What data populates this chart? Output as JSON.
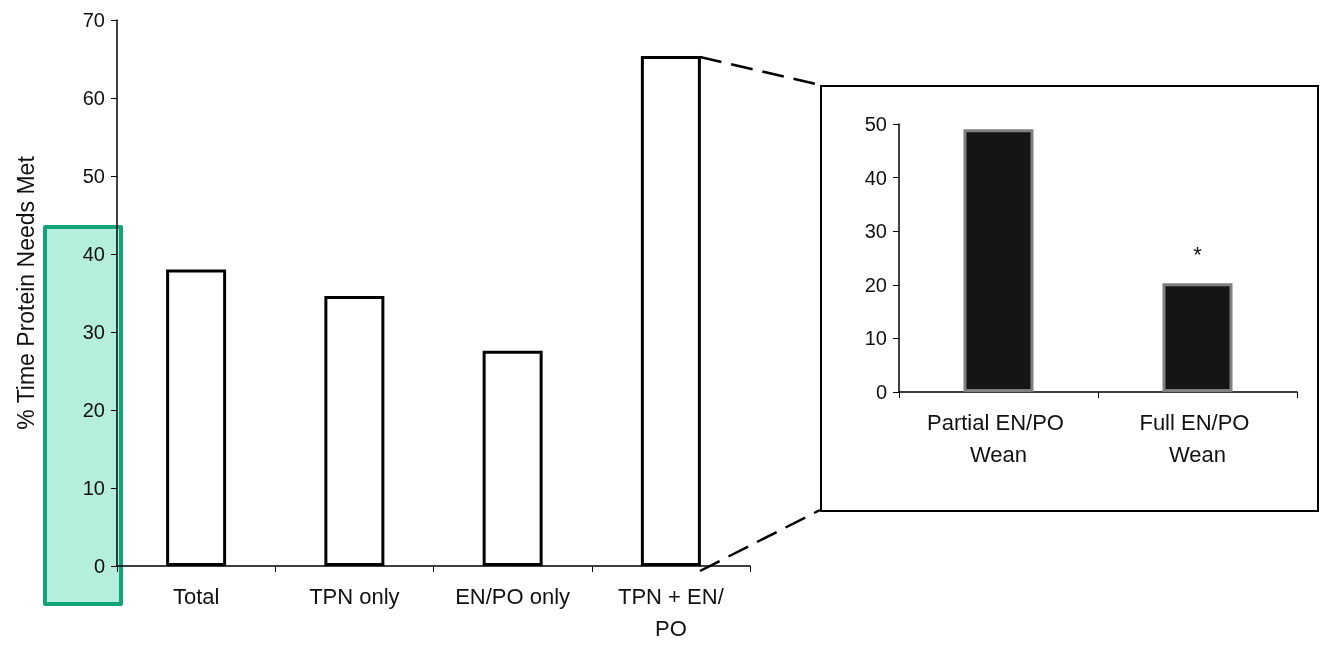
{
  "chart_data": [
    {
      "type": "bar",
      "ylabel": "% Time Protein Needs Met",
      "categories": [
        "Total",
        "TPN only",
        "EN/PO only",
        "TPN + EN/PO"
      ],
      "values": [
        38,
        34.6,
        27.6,
        65.4
      ],
      "color": "#ffffff",
      "ylim": [
        0,
        70
      ],
      "yticks": [
        0,
        10,
        20,
        30,
        40,
        50,
        60,
        70
      ],
      "grid": false
    },
    {
      "type": "bar",
      "categories": [
        "Partial EN/PO Wean",
        "Full EN/PO Wean"
      ],
      "values": [
        49,
        20.3
      ],
      "color": "#151515",
      "ylim": [
        0,
        50
      ],
      "yticks": [
        0,
        10,
        20,
        30,
        40,
        50
      ],
      "grid": false,
      "annotations": [
        {
          "text": "*",
          "x": "Full EN/PO Wean",
          "y": 20.3
        }
      ]
    }
  ]
}
